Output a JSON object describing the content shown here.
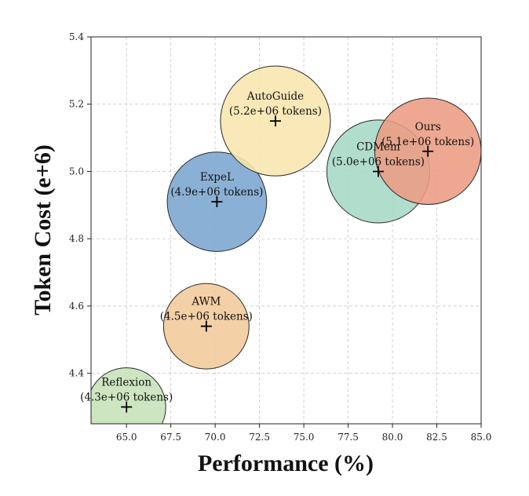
{
  "chart_data": {
    "type": "scatter",
    "subtype": "bubble",
    "xlabel": "Performance (%)",
    "ylabel": "Token Cost (e+6)",
    "xlim": [
      63,
      85
    ],
    "ylim": [
      4.25,
      5.4
    ],
    "xticks": [
      "65.0",
      "67.5",
      "70.0",
      "72.5",
      "75.0",
      "77.5",
      "80.0",
      "82.5",
      "85.0"
    ],
    "yticks": [
      "4.4",
      "4.6",
      "4.8",
      "5.0",
      "5.2",
      "5.4"
    ],
    "grid": true,
    "points": [
      {
        "name": "Reflexion",
        "value_label": "(4.3e+06 tokens)",
        "x": 65.0,
        "y": 4.3,
        "tokens_e6": 4.3,
        "color": "#c6e2b8"
      },
      {
        "name": "AWM",
        "value_label": "(4.5e+06 tokens)",
        "x": 69.5,
        "y": 4.54,
        "tokens_e6": 4.5,
        "color": "#f3c99a"
      },
      {
        "name": "ExpeL",
        "value_label": "(4.9e+06 tokens)",
        "x": 70.1,
        "y": 4.91,
        "tokens_e6": 4.9,
        "color": "#7aa6cf"
      },
      {
        "name": "AutoGuide",
        "value_label": "(5.2e+06 tokens)",
        "x": 73.4,
        "y": 5.15,
        "tokens_e6": 5.2,
        "color": "#f9e6ae"
      },
      {
        "name": "CDMem",
        "value_label": "(5.0e+06 tokens)",
        "x": 79.2,
        "y": 5.0,
        "tokens_e6": 5.0,
        "color": "#a6d8c5"
      },
      {
        "name": "Ours",
        "value_label": "(5.1e+06 tokens)",
        "x": 82.0,
        "y": 5.06,
        "tokens_e6": 5.1,
        "color": "#ec9c83"
      }
    ]
  }
}
